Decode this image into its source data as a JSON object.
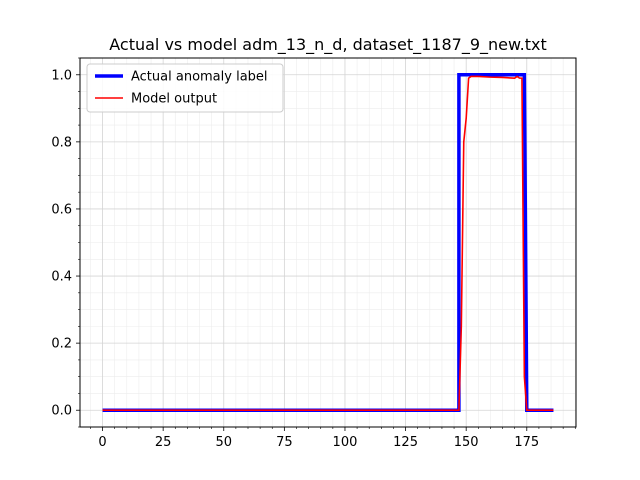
{
  "chart_data": {
    "type": "line",
    "title": "Actual vs model adm_13_n_d, dataset_1187_9_new.txt",
    "xlabel": "",
    "ylabel": "",
    "xlim": [
      -9.3,
      195.3
    ],
    "ylim": [
      -0.05,
      1.05
    ],
    "xticks": [
      0,
      25,
      50,
      75,
      100,
      125,
      150,
      175
    ],
    "yticks": [
      0.0,
      0.2,
      0.4,
      0.6,
      0.8,
      1.0
    ],
    "xtick_labels": [
      "0",
      "25",
      "50",
      "75",
      "100",
      "125",
      "150",
      "175"
    ],
    "ytick_labels": [
      "0.0",
      "0.2",
      "0.4",
      "0.6",
      "0.8",
      "1.0"
    ],
    "grid": true,
    "minor_grid": true,
    "legend_position": "top-left",
    "series": [
      {
        "name": "Actual anomaly label",
        "color": "#0000ff",
        "x": [
          0,
          147,
          147,
          173,
          174,
          175,
          186
        ],
        "y": [
          0,
          0,
          1,
          1,
          1,
          0,
          0
        ]
      },
      {
        "name": "Model output",
        "color": "#ff0000",
        "x": [
          0,
          146,
          147,
          148,
          149,
          150,
          151,
          152,
          155,
          160,
          165,
          170,
          171,
          172,
          173,
          174,
          175,
          180,
          186
        ],
        "y": [
          0.0,
          0.0,
          0.0,
          0.25,
          0.8,
          0.87,
          0.99,
          0.995,
          0.995,
          0.993,
          0.992,
          0.99,
          0.995,
          0.99,
          0.99,
          0.1,
          0.0,
          0.0,
          0.0
        ]
      }
    ]
  }
}
